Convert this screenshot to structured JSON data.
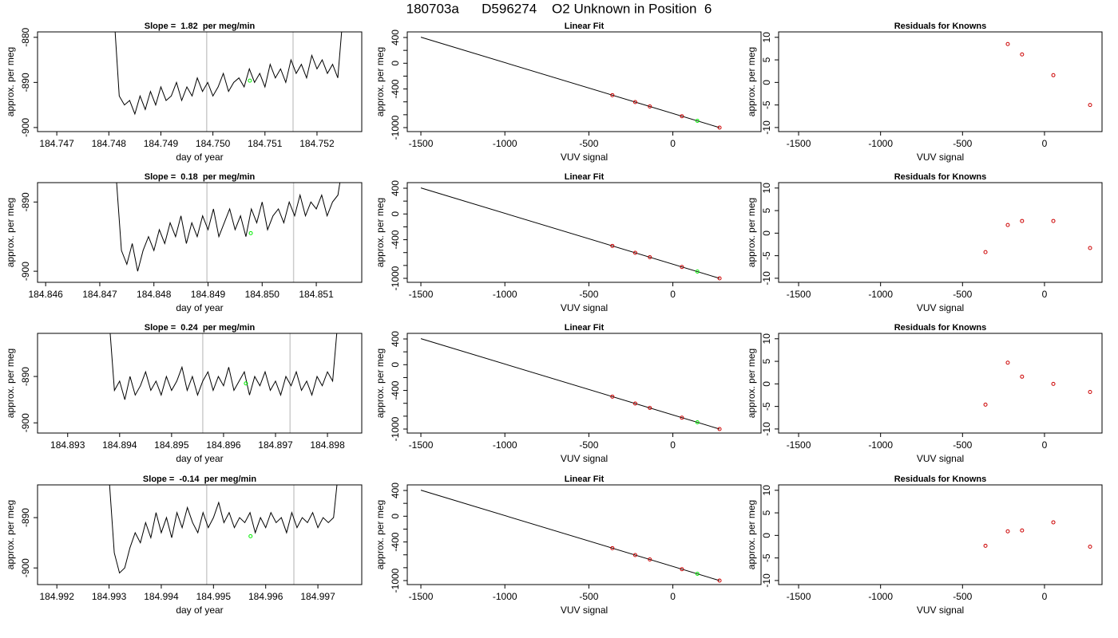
{
  "title": "180703a      D596274    O2 Unknown in Position  6",
  "chart_data": [
    {
      "type": "line",
      "title": "Slope =  1.82  per meg/min",
      "xlabel": "day of year",
      "ylabel": "approx. per meg",
      "xlim": [
        184.74663,
        184.75286
      ],
      "ylim": [
        -900.9,
        -878.8
      ],
      "xticks": [
        184.747,
        184.748,
        184.749,
        {
          "value": 184.75,
          "label": "184.750"
        },
        184.751,
        184.752
      ],
      "yticks": [
        -880,
        -890,
        -900
      ],
      "x": [
        184.7481,
        184.7482,
        184.7483,
        184.7484,
        184.7485,
        184.7486,
        184.7487,
        184.7488,
        184.7489,
        184.749,
        184.7491,
        184.7492,
        184.7493,
        184.7494,
        184.7495,
        184.7496,
        184.7497,
        184.7498,
        184.7499,
        184.75,
        184.7501,
        184.7502,
        184.7503,
        184.7504,
        184.7505,
        184.7506,
        184.7507,
        184.7508,
        184.7509,
        184.751,
        184.7511,
        184.7512,
        184.7513,
        184.7514,
        184.7515,
        184.7516,
        184.7517,
        184.7518,
        184.7519,
        184.752,
        184.7521,
        184.7522,
        184.7523,
        184.7524,
        184.7525
      ],
      "series": [
        {
          "color": "#000000",
          "values": [
            -875,
            -893,
            -895,
            -894,
            -897,
            -893,
            -896,
            -892,
            -895,
            -891,
            -894,
            -893,
            -890,
            -894,
            -891,
            -893,
            -889,
            -892,
            -890,
            -893,
            -891,
            -888,
            -892,
            -890,
            -889,
            -891,
            -887,
            -890,
            -888,
            -891,
            -886,
            -889,
            -887,
            -890,
            -885,
            -888,
            -886,
            -889,
            -884,
            -887,
            -885,
            -888,
            -886,
            -889,
            -875
          ]
        }
      ],
      "vlines": [
        184.74988,
        184.75154
      ],
      "vline_color": "#cccccc",
      "marker": {
        "x": 184.75071,
        "y": -889.6,
        "color": "#00ee00"
      }
    },
    {
      "type": "scatter",
      "title": "Linear Fit",
      "xlabel": "VUV signal",
      "ylabel": "approx. per meg",
      "xlim": [
        -1581,
        525
      ],
      "ylim": [
        -1062,
        487
      ],
      "xticks": [
        -1500,
        -1000,
        -500,
        0
      ],
      "yticks": [
        400,
        0,
        -400,
        -1000
      ],
      "yminorticks": [
        200,
        -200,
        -600,
        -800
      ],
      "fit_line": {
        "x": [
          -1500,
          278
        ],
        "values": [
          405,
          -1000
        ],
        "color": "#000000"
      },
      "series": [
        {
          "color": "#cc0000",
          "x": [
            -360,
            -224,
            -137,
            54,
            278
          ],
          "values": [
            -496,
            -603,
            -672,
            -823,
            -1000
          ]
        },
        {
          "color": "#00ee00",
          "x": [
            146
          ],
          "values": [
            -895
          ]
        }
      ]
    },
    {
      "type": "scatter",
      "title": "Residuals for Knowns",
      "xlabel": "VUV signal",
      "ylabel": "approx. per meg",
      "xlim": [
        -1622,
        351
      ],
      "ylim": [
        -10.9,
        11.2
      ],
      "xticks": [
        -1500,
        -1000,
        -500,
        0
      ],
      "yticks": [
        10,
        5,
        0,
        -5,
        -10
      ],
      "series": [
        {
          "color": "#cc0000",
          "x": [
            -224,
            -137,
            54,
            278
          ],
          "values": [
            8.5,
            6.2,
            1.6,
            -5
          ]
        }
      ]
    },
    {
      "type": "line",
      "title": "Slope =  0.18  per meg/min",
      "xlabel": "day of year",
      "ylabel": "approx. per meg",
      "xlim": [
        184.84585,
        184.85184
      ],
      "ylim": [
        -901.6,
        -887.2
      ],
      "xticks": [
        184.846,
        184.847,
        184.848,
        184.849,
        {
          "value": 184.85,
          "label": "184.850"
        },
        184.851
      ],
      "yticks": [
        -890,
        -900
      ],
      "x": [
        184.8473,
        184.8474,
        184.8475,
        184.8476,
        184.8477,
        184.8478,
        184.8479,
        184.848,
        184.8481,
        184.8482,
        184.8483,
        184.8484,
        184.8485,
        184.8486,
        184.8487,
        184.8488,
        184.8489,
        184.849,
        184.8491,
        184.8492,
        184.8493,
        184.8494,
        184.8495,
        184.8496,
        184.8497,
        184.8498,
        184.8499,
        184.85,
        184.8501,
        184.8502,
        184.8503,
        184.8504,
        184.8505,
        184.8506,
        184.8507,
        184.8508,
        184.8509,
        184.851,
        184.8511,
        184.8512,
        184.8513,
        184.8514,
        184.8515
      ],
      "series": [
        {
          "color": "#000000",
          "values": [
            -886,
            -897,
            -899,
            -896,
            -900,
            -897,
            -895,
            -897,
            -894,
            -896,
            -893,
            -895,
            -892,
            -896,
            -893,
            -895,
            -892,
            -894,
            -891,
            -895,
            -893,
            -891,
            -894,
            -892,
            -895,
            -891,
            -893,
            -890,
            -894,
            -892,
            -891,
            -893,
            -890,
            -892,
            -889,
            -892,
            -890,
            -891,
            -889,
            -892,
            -890,
            -889,
            -884
          ]
        }
      ],
      "vlines": [
        184.84898,
        184.85058
      ],
      "vline_color": "#cccccc",
      "marker": {
        "x": 184.84979,
        "y": -894.5,
        "color": "#00ee00"
      }
    },
    {
      "type": "scatter",
      "title": "Linear Fit",
      "xlabel": "VUV signal",
      "ylabel": "approx. per meg",
      "xlim": [
        -1581,
        525
      ],
      "ylim": [
        -1062,
        487
      ],
      "xticks": [
        -1500,
        -1000,
        -500,
        0
      ],
      "yticks": [
        400,
        0,
        -400,
        -1000
      ],
      "yminorticks": [
        200,
        -200,
        -600,
        -800
      ],
      "fit_line": {
        "x": [
          -1500,
          278
        ],
        "values": [
          405,
          -1000
        ],
        "color": "#000000"
      },
      "series": [
        {
          "color": "#cc0000",
          "x": [
            -360,
            -224,
            -137,
            54,
            278
          ],
          "values": [
            -496,
            -603,
            -672,
            -823,
            -1000
          ]
        },
        {
          "color": "#00ee00",
          "x": [
            146
          ],
          "values": [
            -895
          ]
        }
      ]
    },
    {
      "type": "scatter",
      "title": "Residuals for Knowns",
      "xlabel": "VUV signal",
      "ylabel": "approx. per meg",
      "xlim": [
        -1622,
        351
      ],
      "ylim": [
        -10.9,
        11.2
      ],
      "xticks": [
        -1500,
        -1000,
        -500,
        0
      ],
      "yticks": [
        10,
        5,
        0,
        -5,
        -10
      ],
      "series": [
        {
          "color": "#cc0000",
          "x": [
            -360,
            -224,
            -137,
            54,
            278
          ],
          "values": [
            -4.2,
            1.8,
            2.7,
            2.7,
            -3.3
          ]
        }
      ]
    },
    {
      "type": "line",
      "title": "Slope =  0.24  per meg/min",
      "xlabel": "day of year",
      "ylabel": "approx. per meg",
      "xlim": [
        184.89242,
        184.89866
      ],
      "ylim": [
        -902.2,
        -880.7
      ],
      "xticks": [
        184.893,
        184.894,
        184.895,
        184.896,
        184.897,
        184.898
      ],
      "yticks": [
        -890,
        -900
      ],
      "x": [
        184.8938,
        184.8939,
        184.894,
        184.8941,
        184.8942,
        184.8943,
        184.8944,
        184.8945,
        184.8946,
        184.8947,
        184.8948,
        184.8949,
        184.895,
        184.8951,
        184.8952,
        184.8953,
        184.8954,
        184.8955,
        184.8956,
        184.8957,
        184.8958,
        184.8959,
        184.896,
        184.8961,
        184.8962,
        184.8963,
        184.8964,
        184.8965,
        184.8966,
        184.8967,
        184.8968,
        184.8969,
        184.897,
        184.8971,
        184.8972,
        184.8973,
        184.8974,
        184.8975,
        184.8976,
        184.8977,
        184.8978,
        184.8979,
        184.898,
        184.8981,
        184.8982
      ],
      "series": [
        {
          "color": "#000000",
          "values": [
            -878,
            -893,
            -891,
            -895,
            -890,
            -894,
            -892,
            -889,
            -893,
            -891,
            -894,
            -890,
            -893,
            -891,
            -888,
            -893,
            -890,
            -894,
            -891,
            -889,
            -893,
            -890,
            -892,
            -888,
            -893,
            -891,
            -889,
            -894,
            -890,
            -892,
            -889,
            -893,
            -891,
            -894,
            -890,
            -892,
            -889,
            -893,
            -891,
            -894,
            -890,
            -892,
            -889,
            -891,
            -878
          ]
        }
      ],
      "vlines": [
        184.8956,
        184.89728
      ],
      "vline_color": "#cccccc",
      "marker": {
        "x": 184.89643,
        "y": -891.5,
        "color": "#00ee00"
      }
    },
    {
      "type": "scatter",
      "title": "Linear Fit",
      "xlabel": "VUV signal",
      "ylabel": "approx. per meg",
      "xlim": [
        -1581,
        525
      ],
      "ylim": [
        -1062,
        487
      ],
      "xticks": [
        -1500,
        -1000,
        -500,
        0
      ],
      "yticks": [
        400,
        0,
        -400,
        -1000
      ],
      "yminorticks": [
        200,
        -200,
        -600,
        -800
      ],
      "fit_line": {
        "x": [
          -1500,
          278
        ],
        "values": [
          405,
          -1000
        ],
        "color": "#000000"
      },
      "series": [
        {
          "color": "#cc0000",
          "x": [
            -360,
            -224,
            -137,
            54,
            278
          ],
          "values": [
            -496,
            -603,
            -672,
            -823,
            -1000
          ]
        },
        {
          "color": "#00ee00",
          "x": [
            146
          ],
          "values": [
            -895
          ]
        }
      ]
    },
    {
      "type": "scatter",
      "title": "Residuals for Knowns",
      "xlabel": "VUV signal",
      "ylabel": "approx. per meg",
      "xlim": [
        -1622,
        351
      ],
      "ylim": [
        -10.9,
        11.2
      ],
      "xticks": [
        -1500,
        -1000,
        -500,
        0
      ],
      "yticks": [
        10,
        5,
        0,
        -5,
        -10
      ],
      "series": [
        {
          "color": "#cc0000",
          "x": [
            -360,
            -224,
            -137,
            54,
            278
          ],
          "values": [
            -4.6,
            4.7,
            1.6,
            0,
            -1.8
          ]
        }
      ]
    },
    {
      "type": "line",
      "title": "Slope =  -0.14  per meg/min",
      "xlabel": "day of year",
      "ylabel": "approx. per meg",
      "xlim": [
        184.99163,
        184.99784
      ],
      "ylim": [
        -903.3,
        -883.5
      ],
      "xticks": [
        184.992,
        184.993,
        184.994,
        184.995,
        184.996,
        184.997
      ],
      "yticks": [
        -890,
        -900
      ],
      "x": [
        184.993,
        184.9931,
        184.9932,
        184.9933,
        184.9934,
        184.9935,
        184.9936,
        184.9937,
        184.9938,
        184.9939,
        184.994,
        184.9941,
        184.9942,
        184.9943,
        184.9944,
        184.9945,
        184.9946,
        184.9947,
        184.9948,
        184.9949,
        184.995,
        184.9951,
        184.9952,
        184.9953,
        184.9954,
        184.9955,
        184.9956,
        184.9957,
        184.9958,
        184.9959,
        184.996,
        184.9961,
        184.9962,
        184.9963,
        184.9964,
        184.9965,
        184.9966,
        184.9967,
        184.9968,
        184.9969,
        184.997,
        184.9971,
        184.9972,
        184.9973,
        184.9974
      ],
      "series": [
        {
          "color": "#000000",
          "values": [
            -882,
            -897,
            -901,
            -900,
            -896,
            -893,
            -895,
            -891,
            -894,
            -889,
            -893,
            -890,
            -894,
            -889,
            -892,
            -888,
            -891,
            -893,
            -889,
            -892,
            -890,
            -887,
            -891,
            -889,
            -892,
            -890,
            -891,
            -889,
            -893,
            -890,
            -892,
            -889,
            -891,
            -890,
            -893,
            -889,
            -892,
            -890,
            -891,
            -889,
            -892,
            -890,
            -891,
            -890,
            -880
          ]
        }
      ],
      "vlines": [
        184.99487,
        184.99654
      ],
      "vline_color": "#cccccc",
      "marker": {
        "x": 184.99571,
        "y": -893.7,
        "color": "#00ee00"
      }
    },
    {
      "type": "scatter",
      "title": "Linear Fit",
      "xlabel": "VUV signal",
      "ylabel": "approx. per meg",
      "xlim": [
        -1581,
        525
      ],
      "ylim": [
        -1062,
        487
      ],
      "xticks": [
        -1500,
        -1000,
        -500,
        0
      ],
      "yticks": [
        400,
        0,
        -400,
        -1000
      ],
      "yminorticks": [
        200,
        -200,
        -600,
        -800
      ],
      "fit_line": {
        "x": [
          -1500,
          278
        ],
        "values": [
          405,
          -1000
        ],
        "color": "#000000"
      },
      "series": [
        {
          "color": "#cc0000",
          "x": [
            -360,
            -224,
            -137,
            54,
            278
          ],
          "values": [
            -496,
            -603,
            -672,
            -823,
            -1000
          ]
        },
        {
          "color": "#00ee00",
          "x": [
            146
          ],
          "values": [
            -895
          ]
        }
      ]
    },
    {
      "type": "scatter",
      "title": "Residuals for Knowns",
      "xlabel": "VUV signal",
      "ylabel": "approx. per meg",
      "xlim": [
        -1622,
        351
      ],
      "ylim": [
        -10.9,
        11.2
      ],
      "xticks": [
        -1500,
        -1000,
        -500,
        0
      ],
      "yticks": [
        10,
        5,
        0,
        -5,
        -10
      ],
      "series": [
        {
          "color": "#cc0000",
          "x": [
            -360,
            -224,
            -137,
            54,
            278
          ],
          "values": [
            -2.3,
            0.9,
            1.1,
            2.9,
            -2.5
          ]
        }
      ]
    }
  ]
}
